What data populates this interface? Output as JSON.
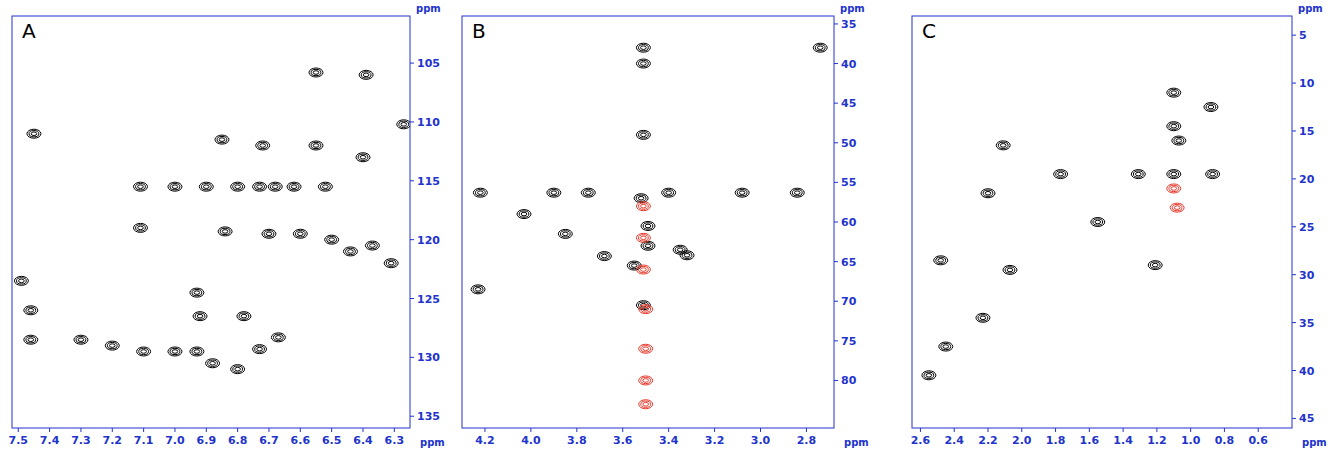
{
  "chart_data": [
    {
      "type": "scatter",
      "title": "A",
      "xlabel": "ppm",
      "ylabel": "ppm",
      "marker": "contour",
      "grid": false,
      "xlim": [
        7.52,
        6.25
      ],
      "ylim": [
        101,
        136
      ],
      "xticks": [
        7.5,
        7.4,
        7.3,
        7.2,
        7.1,
        7.0,
        6.9,
        6.8,
        6.7,
        6.6,
        6.5,
        6.4,
        6.3
      ],
      "yticks": [
        105,
        110,
        115,
        120,
        125,
        130,
        135
      ],
      "series": [
        {
          "color": "#000000",
          "x": [
            7.45,
            7.11,
            7.11,
            7.49,
            7.46,
            7.46,
            6.55,
            6.39,
            6.85,
            6.72,
            6.55,
            6.4,
            7.0,
            6.9,
            6.8,
            6.73,
            6.68,
            6.62,
            6.52,
            6.7,
            6.6,
            6.5,
            6.44,
            6.37,
            6.31,
            6.93,
            6.92,
            6.78,
            6.67,
            6.73,
            7.1,
            7.0,
            6.93,
            6.88,
            6.8,
            7.3,
            7.2,
            6.27,
            6.84
          ],
          "values": [
            111,
            115.5,
            119,
            123.5,
            126,
            128.5,
            105.8,
            106,
            111.5,
            112,
            112,
            113,
            115.5,
            115.5,
            115.5,
            115.5,
            115.5,
            115.5,
            115.5,
            119.5,
            119.5,
            120,
            121,
            120.5,
            122,
            124.5,
            126.5,
            126.5,
            128.3,
            129.3,
            129.5,
            129.5,
            129.5,
            130.5,
            131,
            128.5,
            129,
            110.2,
            119.3
          ]
        }
      ]
    },
    {
      "type": "scatter",
      "title": "B",
      "xlabel": "ppm",
      "ylabel": "ppm",
      "marker": "contour",
      "grid": false,
      "xlim": [
        4.3,
        2.68
      ],
      "ylim": [
        34,
        86
      ],
      "xticks": [
        4.2,
        4.0,
        3.8,
        3.6,
        3.4,
        3.2,
        3.0,
        2.8
      ],
      "yticks": [
        35,
        40,
        45,
        50,
        55,
        60,
        65,
        70,
        75,
        80
      ],
      "series": [
        {
          "color": "#000000",
          "x": [
            4.22,
            4.03,
            3.85,
            3.52,
            3.4,
            3.75,
            3.9,
            3.08,
            2.84,
            2.74,
            3.51,
            3.51,
            3.51,
            3.49,
            3.49,
            3.68,
            3.55,
            3.35,
            3.32,
            3.51,
            4.23
          ],
          "values": [
            56.3,
            59,
            61.5,
            57,
            56.3,
            56.3,
            56.3,
            56.3,
            56.3,
            38,
            38,
            40,
            49,
            60.5,
            63,
            64.3,
            65.5,
            63.5,
            64.2,
            70.5,
            68.5
          ]
        },
        {
          "color": "#e8392b",
          "x": [
            3.51,
            3.51,
            3.51,
            3.5,
            3.5,
            3.5,
            3.5
          ],
          "values": [
            58,
            62,
            66,
            71,
            76,
            80,
            83
          ]
        }
      ]
    },
    {
      "type": "scatter",
      "title": "C",
      "xlabel": "ppm",
      "ylabel": "ppm",
      "marker": "contour",
      "grid": false,
      "xlim": [
        2.65,
        0.4
      ],
      "ylim": [
        3,
        46
      ],
      "xticks": [
        2.6,
        2.4,
        2.2,
        2.0,
        1.8,
        1.6,
        1.4,
        1.2,
        1.0,
        0.8,
        0.6
      ],
      "yticks": [
        5,
        10,
        15,
        20,
        25,
        30,
        35,
        40,
        45
      ],
      "series": [
        {
          "color": "#000000",
          "x": [
            2.55,
            2.45,
            2.48,
            2.23,
            2.07,
            2.2,
            2.11,
            1.77,
            1.55,
            1.31,
            1.21,
            1.1,
            1.1,
            1.1,
            1.07,
            0.88,
            0.87
          ],
          "values": [
            40.5,
            37.5,
            28.5,
            34.5,
            29.5,
            21.5,
            16.5,
            19.5,
            24.5,
            19.5,
            29,
            19.5,
            11,
            14.5,
            16,
            12.5,
            19.5
          ]
        },
        {
          "color": "#e8392b",
          "x": [
            1.1,
            1.08
          ],
          "values": [
            21,
            23
          ]
        }
      ]
    }
  ]
}
